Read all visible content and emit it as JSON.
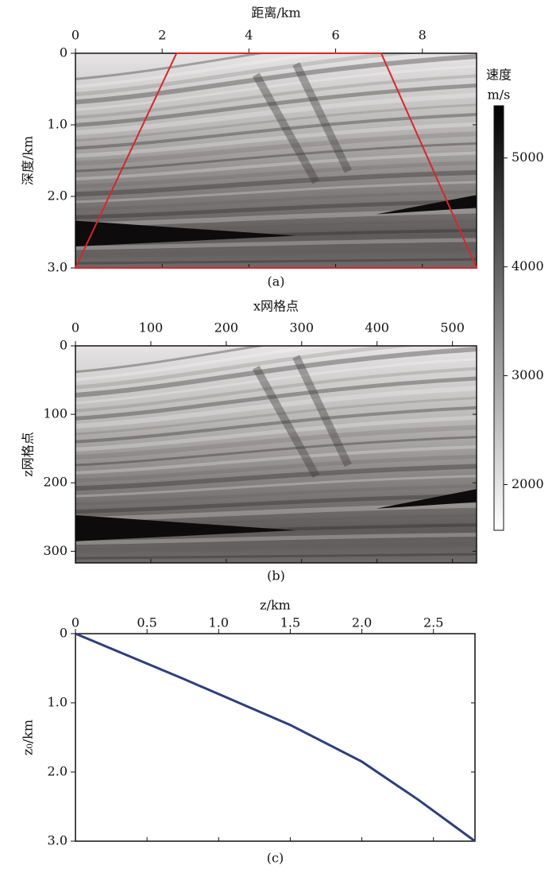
{
  "chart_data": [
    {
      "type": "heatmap",
      "x_label": "距离/km",
      "y_label": "深度/km",
      "caption": "(a)",
      "xlim": [
        0,
        9.25
      ],
      "ylim": [
        0,
        3
      ],
      "xticks": [
        0,
        2,
        4,
        6,
        8
      ],
      "yticks": [
        0,
        {
          "value": 1,
          "label": "1.0"
        },
        {
          "value": 2,
          "label": "2.0"
        },
        {
          "value": 3,
          "label": "3.0"
        }
      ],
      "overlay": {
        "color": "#d62728",
        "x": [
          0,
          2.33,
          7.05,
          9.25
        ],
        "y": [
          3,
          0,
          0,
          3
        ]
      },
      "colorbar": {
        "title": "速度",
        "unit": "m/s",
        "clim": [
          1580,
          5480
        ],
        "ticks": [
          2000,
          3000,
          4000,
          5000
        ]
      }
    },
    {
      "type": "heatmap",
      "x_label": "x网格点",
      "y_label": "z网格点",
      "caption": "(b)",
      "xlim": [
        0,
        532
      ],
      "ylim": [
        0,
        317
      ],
      "xticks": [
        0,
        100,
        200,
        300,
        400,
        500
      ],
      "yticks": [
        0,
        100,
        200,
        300
      ]
    },
    {
      "type": "line",
      "x_label": "z/km",
      "y_label": "z₀/km",
      "caption": "(c)",
      "xlim": [
        0,
        2.79
      ],
      "ylim": [
        0,
        3
      ],
      "xticks": [
        0,
        0.5,
        {
          "value": 1,
          "label": "1.0"
        },
        1.5,
        {
          "value": 2,
          "label": "2.0"
        },
        2.5
      ],
      "yticks": [
        0,
        {
          "value": 1,
          "label": "1.0"
        },
        {
          "value": 2,
          "label": "2.0"
        },
        {
          "value": 3,
          "label": "3.0"
        }
      ],
      "x": [
        0,
        0.75,
        1.5,
        2.0,
        2.4,
        2.79
      ],
      "values": [
        0,
        0.65,
        1.32,
        1.85,
        2.41,
        3.0
      ],
      "color": "#2e3f7c"
    }
  ]
}
